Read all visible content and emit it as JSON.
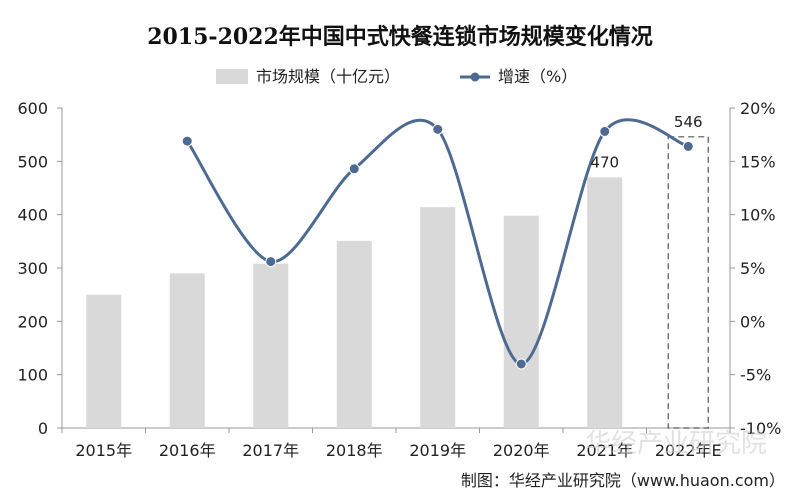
{
  "chart_data": {
    "type": "bar+line",
    "title": "2015-2022年中国中式快餐连锁市场规模变化情况",
    "categories": [
      "2015年",
      "2016年",
      "2017年",
      "2018年",
      "2019年",
      "2020年",
      "2021年",
      "2022年E"
    ],
    "series": [
      {
        "name": "市场规模（十亿元）",
        "type": "bar",
        "axis": "left",
        "values": [
          250,
          290,
          308,
          351,
          414,
          398,
          470,
          546
        ],
        "color": "#d9d9d9",
        "forecast_index": 7
      },
      {
        "name": "增速（%）",
        "type": "line",
        "axis": "right",
        "values": [
          null,
          16.9,
          5.6,
          14.3,
          18.0,
          -4.0,
          17.8,
          16.4
        ],
        "color": "#4d6a92",
        "smooth": true
      }
    ],
    "data_labels": [
      {
        "index": 6,
        "text": "470"
      },
      {
        "index": 7,
        "text": "546"
      }
    ],
    "y_left": {
      "ylim": [
        0,
        600
      ],
      "ticks": [
        "0",
        "100",
        "200",
        "300",
        "400",
        "500",
        "600"
      ]
    },
    "y_right": {
      "ylim": [
        -10,
        20
      ],
      "ticks": [
        "-10%",
        "-5%",
        "0%",
        "5%",
        "10%",
        "15%",
        "20%"
      ]
    },
    "grid": false,
    "legend_position": "top-center"
  },
  "source_note": "制图：华经产业研究院（www.huaon.com）",
  "watermark": "华经产业研究院"
}
